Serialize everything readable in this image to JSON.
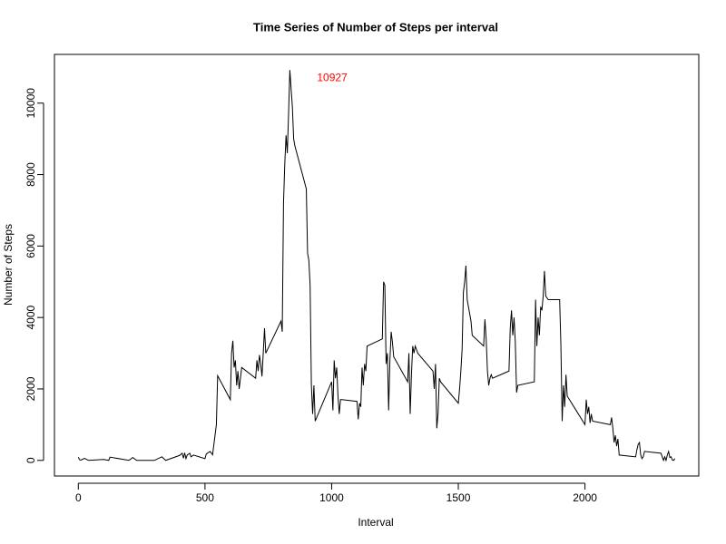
{
  "chart_data": {
    "type": "line",
    "title": "Time Series of Number of Steps per interval",
    "x_label": "Interval",
    "y_label": "Number of Steps",
    "annotation": "10927",
    "annotation_color": "#ff0000",
    "color": "#000000",
    "xlim": [
      -94.2,
      2449.2
    ],
    "ylim": [
      -437.08,
      11364.08
    ],
    "xticks": [
      0,
      500,
      1000,
      1500,
      2000
    ],
    "yticks": [
      0,
      2000,
      4000,
      6000,
      8000,
      10000
    ],
    "x": [
      0,
      5,
      10,
      25,
      40,
      100,
      120,
      125,
      200,
      215,
      230,
      300,
      330,
      345,
      400,
      410,
      415,
      420,
      425,
      430,
      440,
      445,
      455,
      500,
      505,
      520,
      530,
      545,
      550,
      600,
      605,
      610,
      615,
      620,
      625,
      630,
      635,
      645,
      700,
      705,
      710,
      715,
      720,
      725,
      730,
      735,
      740,
      800,
      805,
      810,
      815,
      820,
      825,
      830,
      835,
      840,
      845,
      850,
      855,
      900,
      905,
      910,
      915,
      920,
      925,
      930,
      935,
      1000,
      1005,
      1010,
      1015,
      1020,
      1025,
      1030,
      1035,
      1040,
      1100,
      1105,
      1110,
      1115,
      1120,
      1125,
      1130,
      1135,
      1140,
      1200,
      1205,
      1210,
      1215,
      1220,
      1225,
      1230,
      1235,
      1240,
      1245,
      1300,
      1305,
      1310,
      1315,
      1320,
      1325,
      1330,
      1335,
      1340,
      1400,
      1405,
      1410,
      1415,
      1420,
      1425,
      1430,
      1500,
      1505,
      1510,
      1515,
      1520,
      1525,
      1530,
      1535,
      1540,
      1545,
      1550,
      1555,
      1600,
      1605,
      1610,
      1615,
      1620,
      1625,
      1630,
      1635,
      1700,
      1705,
      1710,
      1715,
      1720,
      1725,
      1730,
      1735,
      1800,
      1805,
      1810,
      1815,
      1820,
      1825,
      1830,
      1835,
      1840,
      1845,
      1850,
      1855,
      1900,
      1905,
      1910,
      1915,
      1920,
      1925,
      1930,
      2000,
      2005,
      2010,
      2015,
      2020,
      2025,
      2030,
      2100,
      2105,
      2110,
      2115,
      2120,
      2125,
      2130,
      2135,
      2200,
      2205,
      2210,
      2215,
      2220,
      2225,
      2230,
      2235,
      2300,
      2305,
      2310,
      2315,
      2320,
      2325,
      2330,
      2335,
      2340,
      2345,
      2350,
      2355
    ],
    "values": [
      91,
      18,
      7,
      56,
      0,
      27,
      0,
      91,
      0,
      80,
      0,
      0,
      100,
      0,
      140,
      200,
      60,
      210,
      50,
      150,
      200,
      100,
      150,
      50,
      180,
      250,
      160,
      1000,
      2370,
      1700,
      3000,
      3350,
      2600,
      2800,
      2100,
      2500,
      2000,
      2600,
      2300,
      2800,
      2500,
      2950,
      2700,
      2350,
      3000,
      3700,
      3000,
      3900,
      3600,
      7200,
      8300,
      9100,
      8600,
      9700,
      10927,
      10400,
      9900,
      9000,
      8800,
      7600,
      5800,
      5600,
      4900,
      2100,
      1300,
      2100,
      1100,
      2200,
      1400,
      2800,
      2300,
      2600,
      1800,
      1300,
      1700,
      1700,
      1650,
      1150,
      1600,
      1500,
      2600,
      2100,
      2700,
      2500,
      3200,
      3400,
      5000,
      4900,
      2700,
      3000,
      1400,
      2800,
      3600,
      3300,
      2900,
      2200,
      3000,
      1300,
      2400,
      3200,
      3000,
      3200,
      3100,
      3000,
      2500,
      2000,
      2700,
      900,
      1300,
      2300,
      2200,
      1600,
      2000,
      2500,
      3100,
      4700,
      5000,
      5450,
      4500,
      4300,
      4100,
      3900,
      3500,
      3200,
      3950,
      3400,
      2500,
      2100,
      2300,
      2400,
      2300,
      2500,
      3700,
      4200,
      3500,
      4000,
      3300,
      1900,
      2100,
      2200,
      4500,
      3200,
      4000,
      3500,
      4300,
      4200,
      4600,
      5300,
      4600,
      4550,
      4500,
      4500,
      3200,
      1100,
      2100,
      1500,
      2400,
      1800,
      1000,
      1700,
      1300,
      1500,
      1050,
      1300,
      1100,
      1000,
      1200,
      900,
      500,
      700,
      400,
      600,
      150,
      100,
      300,
      450,
      500,
      150,
      50,
      100,
      250,
      200,
      100,
      0,
      100,
      0,
      150,
      250,
      80,
      100,
      10,
      0,
      50
    ]
  }
}
